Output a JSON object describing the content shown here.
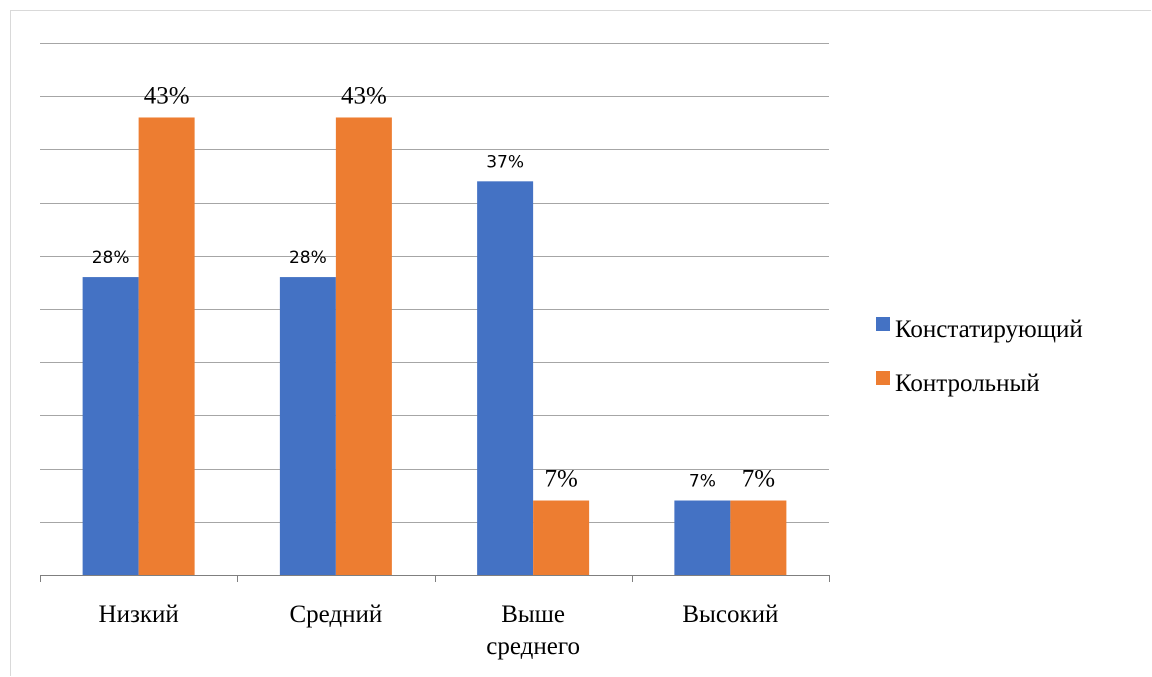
{
  "chart_data": {
    "type": "bar",
    "categories": [
      "Низкий",
      "Средний",
      "Выше среднего",
      "Высокий"
    ],
    "category_lines": [
      [
        "Низкий"
      ],
      [
        "Средний"
      ],
      [
        "Выше",
        "среднего"
      ],
      [
        "Высокий"
      ]
    ],
    "series": [
      {
        "name": "Констатирующий",
        "color": "#4472C4",
        "values": [
          28,
          28,
          37,
          7
        ],
        "labels": [
          "28%",
          "28%",
          "37%",
          "7%"
        ]
      },
      {
        "name": "Контрольный",
        "color": "#ED7D31",
        "values": [
          43,
          43,
          7,
          7
        ],
        "labels": [
          "43%",
          "43%",
          "7%",
          "7%"
        ]
      }
    ],
    "ylim": [
      0,
      50
    ],
    "grid": true,
    "legend_position": "right",
    "title": "",
    "xlabel": "",
    "ylabel": ""
  }
}
